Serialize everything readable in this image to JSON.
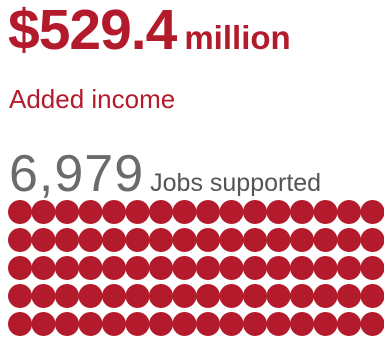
{
  "income": {
    "value": "$529.4",
    "unit": "million",
    "label": "Added income"
  },
  "jobs": {
    "value": "6,979",
    "label": "Jobs supported"
  },
  "colors": {
    "accent": "#b31b2c",
    "number_gray": "#6b6b6b",
    "label_gray": "#555555"
  },
  "icons": {
    "dot": "filled-circle-icon"
  }
}
